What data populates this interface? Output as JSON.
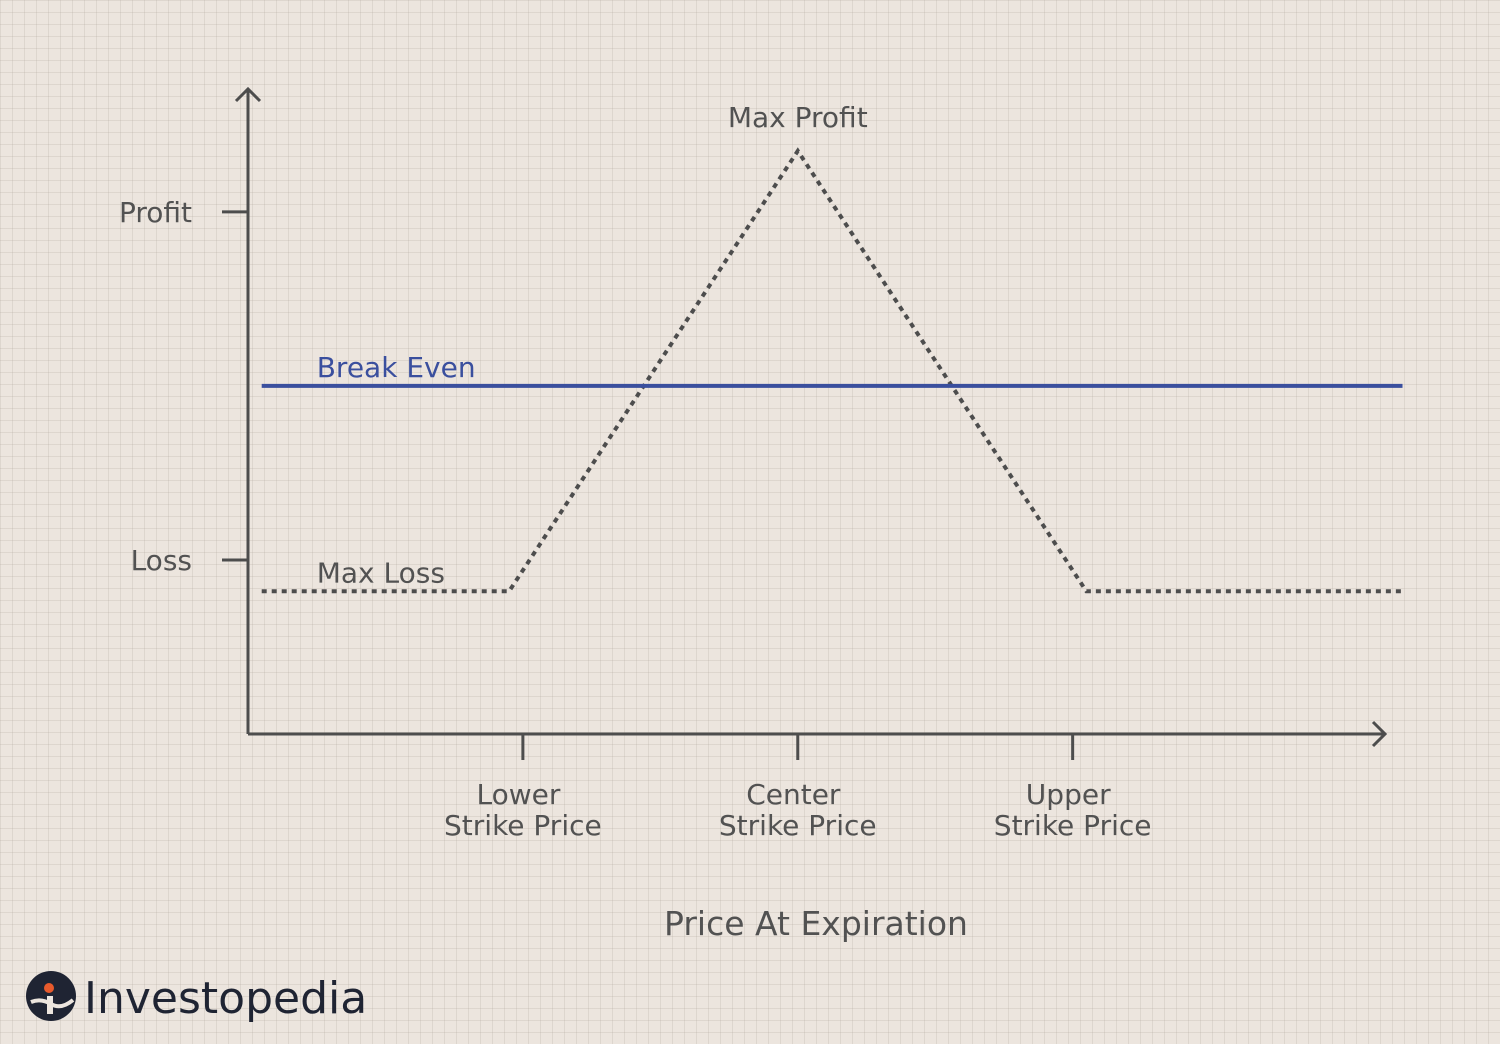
{
  "chart_data": {
    "type": "line",
    "title": "",
    "xlabel": "Price At Expiration",
    "ylabel": "",
    "y_ticks": [
      {
        "label": "Profit",
        "value": 1
      },
      {
        "label": "Loss",
        "value": -1
      }
    ],
    "x_ticks": [
      {
        "label_line1": "Lower",
        "label_line2": "Strike Price",
        "value": 1
      },
      {
        "label_line1": "Center",
        "label_line2": "Strike Price",
        "value": 2
      },
      {
        "label_line1": "Upper",
        "label_line2": "Strike Price",
        "value": 3
      }
    ],
    "xlim": [
      0,
      4.3
    ],
    "ylim": [
      -2.0,
      1.7
    ],
    "series": [
      {
        "name": "Payoff",
        "style": "dotted",
        "color": "#4d4d4d",
        "x": [
          0.05,
          0.95,
          2.0,
          3.05,
          4.2
        ],
        "y": [
          -1.18,
          -1.18,
          1.35,
          -1.18,
          -1.18
        ]
      },
      {
        "name": "Break Even",
        "style": "solid",
        "color": "#3a4f9e",
        "x": [
          0.05,
          4.2
        ],
        "y": [
          0,
          0
        ]
      }
    ],
    "annotations": [
      {
        "text": "Max Profit",
        "x": 2.0,
        "y": 1.35,
        "anchor": "above"
      },
      {
        "text": "Break Even",
        "x": 0.25,
        "y": 0,
        "anchor": "above-left",
        "color": "#3a4f9e"
      },
      {
        "text": "Max Loss",
        "x": 0.25,
        "y": -1.18,
        "anchor": "above-left"
      }
    ]
  },
  "brand": {
    "name": "Investopedia",
    "logo_icon": "investopedia-logo-icon"
  }
}
